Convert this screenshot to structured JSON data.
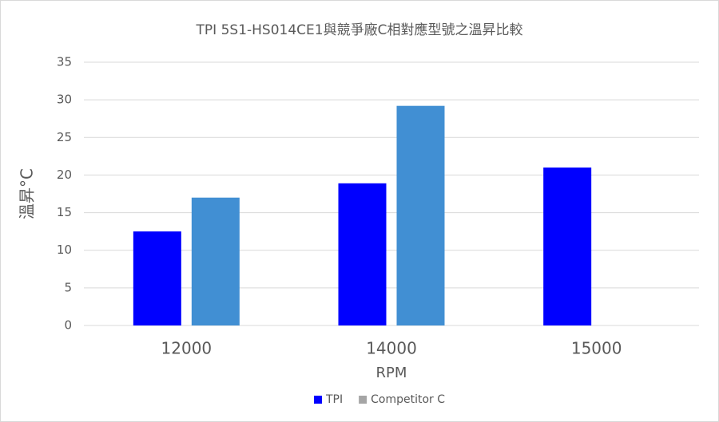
{
  "chart_data": {
    "type": "bar",
    "title": "TPI 5S1-HS014CE1與競爭廠C相對應型號之溫昇比較",
    "x_label": "RPM",
    "y_label": "溫昇°C",
    "categories": [
      "12000",
      "14000",
      "15000"
    ],
    "series": [
      {
        "name": "TPI",
        "color": "#0000ff",
        "legend_color": "#0000ff",
        "values": [
          12.5,
          18.9,
          21
        ]
      },
      {
        "name": "Competitor C",
        "color": "#418fd3",
        "legend_color": "#a5a5a5",
        "values": [
          17,
          29.2,
          null
        ]
      }
    ],
    "ylim": [
      0,
      35
    ],
    "yticks": [
      0,
      5,
      10,
      15,
      20,
      25,
      30,
      35
    ],
    "grid": true,
    "legend": "bottom"
  }
}
